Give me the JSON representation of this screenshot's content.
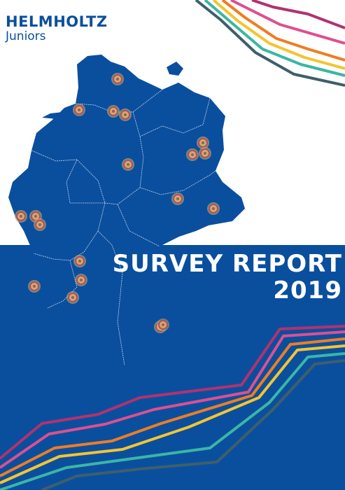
{
  "logo": {
    "brand": "HELMHOLTZ",
    "sub": "Juniors"
  },
  "title": {
    "line1": "SURVEY REPORT",
    "line2": "2019"
  },
  "colors": {
    "blue": "#0a4f9e",
    "line_magenta": "#b2326e",
    "line_pink": "#de4f8f",
    "line_orange": "#ef7d22",
    "line_yellow": "#f4c430",
    "line_teal": "#3cb6a4",
    "line_slate": "#3e5f6b",
    "marker_fill": "#c9b25a",
    "marker_ring": "#b34b73"
  },
  "map": {
    "icon": "germany-map-icon",
    "marker_count": 20
  }
}
